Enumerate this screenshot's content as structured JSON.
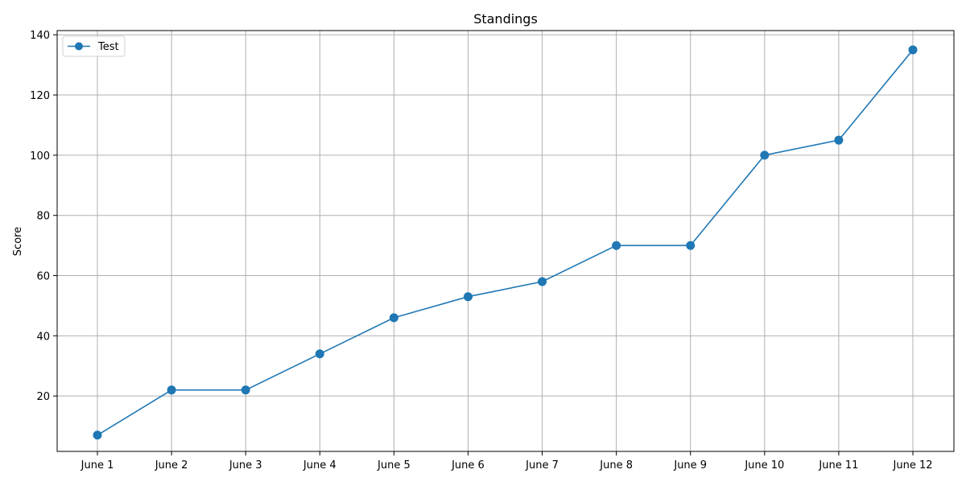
{
  "chart_data": {
    "type": "line",
    "title": "Standings",
    "xlabel": "",
    "ylabel": "Score",
    "categories": [
      "June 1",
      "June 2",
      "June 3",
      "June 4",
      "June 5",
      "June 6",
      "June 7",
      "June 8",
      "June 9",
      "June 10",
      "June 11",
      "June 12"
    ],
    "series": [
      {
        "name": "Test",
        "color": "#1f77b4",
        "marker": "circle",
        "values": [
          7,
          22,
          22,
          34,
          46,
          53,
          58,
          70,
          70,
          100,
          105,
          135
        ]
      }
    ],
    "ylim": [
      1.6,
      141.4
    ],
    "yticks": [
      20,
      40,
      60,
      80,
      100,
      120,
      140
    ],
    "grid": true,
    "legend_position": "top-left"
  }
}
